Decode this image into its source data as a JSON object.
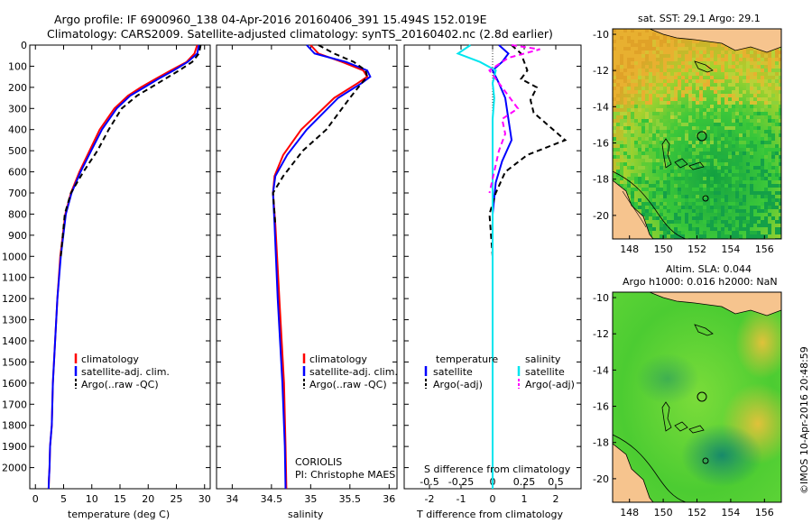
{
  "header": {
    "line1": "Argo profile: IF 6900960_138 04-Apr-2016 20160406_391 15.494S 152.019E",
    "line2": "Climatology: CARS2009. Satellite-adjusted climatology: synTS_20160402.nc (2.8d earlier)"
  },
  "side_label": "©IMOS 10-Apr-2016 20:48:59",
  "colors": {
    "climatology": "#ff0000",
    "satellite": "#0000ff",
    "argo": "#000000",
    "sat_salinity": "#00e5ee",
    "argo_salinity": "#ff00ff",
    "land": "#f6c48e",
    "ocean_hi": "#f0a020",
    "ocean_mid": "#2fd02f",
    "ocean_lo": "#1a9060"
  },
  "chart_data": [
    {
      "id": "temperature",
      "type": "line",
      "xlabel": "temperature (deg C)",
      "ylabel": "",
      "xlim": [
        -1,
        31
      ],
      "ylim": [
        2100,
        0
      ],
      "xticks": [
        0,
        5,
        10,
        15,
        20,
        25,
        30
      ],
      "yticks": [
        0,
        100,
        200,
        300,
        400,
        500,
        600,
        700,
        800,
        900,
        1000,
        1100,
        1200,
        1300,
        1400,
        1500,
        1600,
        1700,
        1800,
        1900,
        2000
      ],
      "legend": [
        "climatology",
        "satellite-adj. clim.",
        "Argo(..raw -QC)"
      ],
      "series": [
        {
          "name": "climatology",
          "style": "solid",
          "color": "#ff0000",
          "x": [
            28.7,
            28.2,
            26.8,
            24.0,
            21.3,
            18.7,
            16.4,
            14.0,
            11.4,
            9.6,
            7.8,
            6.3,
            5.3,
            4.4,
            3.9,
            3.5,
            3.1,
            2.9,
            2.6,
            2.5,
            2.4,
            2.35
          ],
          "y": [
            0,
            40,
            80,
            120,
            160,
            200,
            240,
            300,
            400,
            500,
            600,
            700,
            800,
            1000,
            1200,
            1400,
            1600,
            1800,
            1900,
            2000,
            2050,
            2100
          ]
        },
        {
          "name": "satellite-adj. clim.",
          "style": "solid",
          "color": "#0000ff",
          "x": [
            29.0,
            28.7,
            27.0,
            24.5,
            21.8,
            19.3,
            16.8,
            14.4,
            11.8,
            9.9,
            8.0,
            6.4,
            5.4,
            4.5,
            3.9,
            3.5,
            3.1,
            2.9,
            2.6,
            2.5,
            2.4,
            2.35
          ],
          "y": [
            0,
            40,
            80,
            120,
            160,
            200,
            240,
            300,
            400,
            500,
            600,
            700,
            800,
            1000,
            1200,
            1400,
            1600,
            1800,
            1900,
            2000,
            2050,
            2100
          ]
        },
        {
          "name": "Argo(..raw -QC)",
          "style": "dashed",
          "color": "#000000",
          "x": [
            29.3,
            29.0,
            27.8,
            25.5,
            23.0,
            20.5,
            18.0,
            15.3,
            13.0,
            11.0,
            8.5,
            6.3,
            5.2,
            4.5
          ],
          "y": [
            0,
            40,
            80,
            120,
            160,
            200,
            240,
            300,
            400,
            500,
            600,
            700,
            800,
            1000
          ]
        }
      ]
    },
    {
      "id": "salinity",
      "type": "line",
      "xlabel": "salinity",
      "ylabel": "",
      "xlim": [
        33.8,
        36.1
      ],
      "ylim": [
        2100,
        0
      ],
      "xticks": [
        34,
        34.5,
        35,
        35.5,
        36
      ],
      "legend": [
        "climatology",
        "satellite-adj. clim.",
        "Argo(..raw -QC)"
      ],
      "series": [
        {
          "name": "climatology",
          "style": "solid",
          "color": "#ff0000",
          "x": [
            35.0,
            35.1,
            35.4,
            35.67,
            35.72,
            35.6,
            35.3,
            34.88,
            34.65,
            34.54,
            34.52,
            34.55,
            34.6,
            34.66,
            34.68,
            34.69
          ],
          "y": [
            0,
            40,
            80,
            120,
            150,
            180,
            250,
            400,
            520,
            620,
            700,
            850,
            1200,
            1600,
            1900,
            2100
          ]
        },
        {
          "name": "satellite-adj. clim.",
          "style": "solid",
          "color": "#0000ff",
          "x": [
            34.95,
            35.05,
            35.45,
            35.72,
            35.76,
            35.65,
            35.35,
            34.95,
            34.7,
            34.55,
            34.52,
            34.54,
            34.58,
            34.64,
            34.67,
            34.68
          ],
          "y": [
            0,
            40,
            80,
            120,
            150,
            180,
            250,
            400,
            520,
            620,
            700,
            850,
            1200,
            1600,
            1900,
            2100
          ]
        },
        {
          "name": "Argo(..raw -QC)",
          "style": "dashed",
          "color": "#000000",
          "x": [
            35.1,
            35.3,
            35.55,
            35.7,
            35.72,
            35.65,
            35.5,
            35.2,
            34.9,
            34.65,
            34.52,
            34.55
          ],
          "y": [
            0,
            40,
            80,
            120,
            150,
            180,
            250,
            400,
            500,
            620,
            700,
            850
          ]
        }
      ],
      "annotation": [
        "CORIOLIS",
        "PI: Christophe MAES"
      ]
    },
    {
      "id": "differences",
      "type": "line",
      "xlabel": "T difference from climatology",
      "xlabel2": "S difference from climatology",
      "xlim": [
        -2.8,
        2.8
      ],
      "ylim": [
        2100,
        0
      ],
      "xticks_T": [
        -2,
        -1,
        0,
        1,
        2
      ],
      "xticks_S": [
        -0.5,
        -0.25,
        0,
        0.25,
        0.5
      ],
      "legend_temperature": {
        "title": "temperature",
        "items": [
          "satellite",
          "Argo(-adj)"
        ]
      },
      "legend_salinity": {
        "title": "salinity",
        "items": [
          "satellite",
          "Argo(-adj)"
        ]
      },
      "series": [
        {
          "name": "T satellite",
          "style": "solid",
          "color": "#0000ff",
          "x": [
            0.2,
            0.5,
            0.3,
            0.0,
            0.2,
            0.4,
            0.5,
            0.6,
            0.3,
            0.1,
            0.0,
            0.0,
            0.0,
            0.0,
            0.0
          ],
          "y": [
            0,
            40,
            80,
            120,
            180,
            250,
            350,
            450,
            550,
            650,
            800,
            1000,
            1400,
            1800,
            2100
          ]
        },
        {
          "name": "T Argo(-adj)",
          "style": "dashed",
          "color": "#000000",
          "x": [
            0.6,
            0.9,
            1.0,
            1.1,
            0.9,
            1.4,
            1.2,
            1.3,
            2.3,
            1.1,
            0.4,
            0.1,
            -0.1,
            0.0
          ],
          "y": [
            0,
            40,
            80,
            120,
            160,
            200,
            260,
            320,
            450,
            520,
            600,
            700,
            800,
            1000
          ]
        },
        {
          "name": "S satellite",
          "style": "solid",
          "color": "#00e5ee",
          "x": [
            -0.7,
            -1.1,
            -0.4,
            0.1,
            0.0,
            0.05,
            0.0,
            0.0,
            0.0,
            0.0,
            0.0
          ],
          "y": [
            0,
            40,
            80,
            120,
            180,
            250,
            350,
            500,
            700,
            1000,
            2100
          ]
        },
        {
          "name": "S Argo(-adj)",
          "style": "dashed",
          "color": "#ff00ff",
          "x": [
            0.6,
            1.5,
            0.5,
            -0.1,
            0.2,
            0.5,
            0.8,
            0.3,
            0.4,
            0.2,
            -0.1
          ],
          "y": [
            0,
            20,
            60,
            120,
            180,
            240,
            300,
            350,
            420,
            500,
            700
          ]
        }
      ]
    },
    {
      "id": "map_sst",
      "type": "heatmap",
      "title": "sat. SST: 29.1  Argo: 29.1",
      "xticks": [
        148,
        150,
        152,
        154,
        156
      ],
      "yticks": [
        -10,
        -12,
        -14,
        -16,
        -18,
        -20
      ],
      "xlim": [
        147,
        157
      ],
      "ylim": [
        -21.3,
        -9.7
      ],
      "argo_position": {
        "lon": 152.019,
        "lat": -15.494
      }
    },
    {
      "id": "map_sla",
      "type": "heatmap",
      "title": "Altim. SLA: 0.044",
      "subtitle": "Argo h1000: 0.016 h2000: NaN",
      "xticks": [
        148,
        150,
        152,
        154,
        156
      ],
      "yticks": [
        -10,
        -12,
        -14,
        -16,
        -18,
        -20
      ],
      "xlim": [
        147,
        157
      ],
      "ylim": [
        -21.3,
        -9.7
      ],
      "argo_position": {
        "lon": 152.019,
        "lat": -15.494
      }
    }
  ]
}
